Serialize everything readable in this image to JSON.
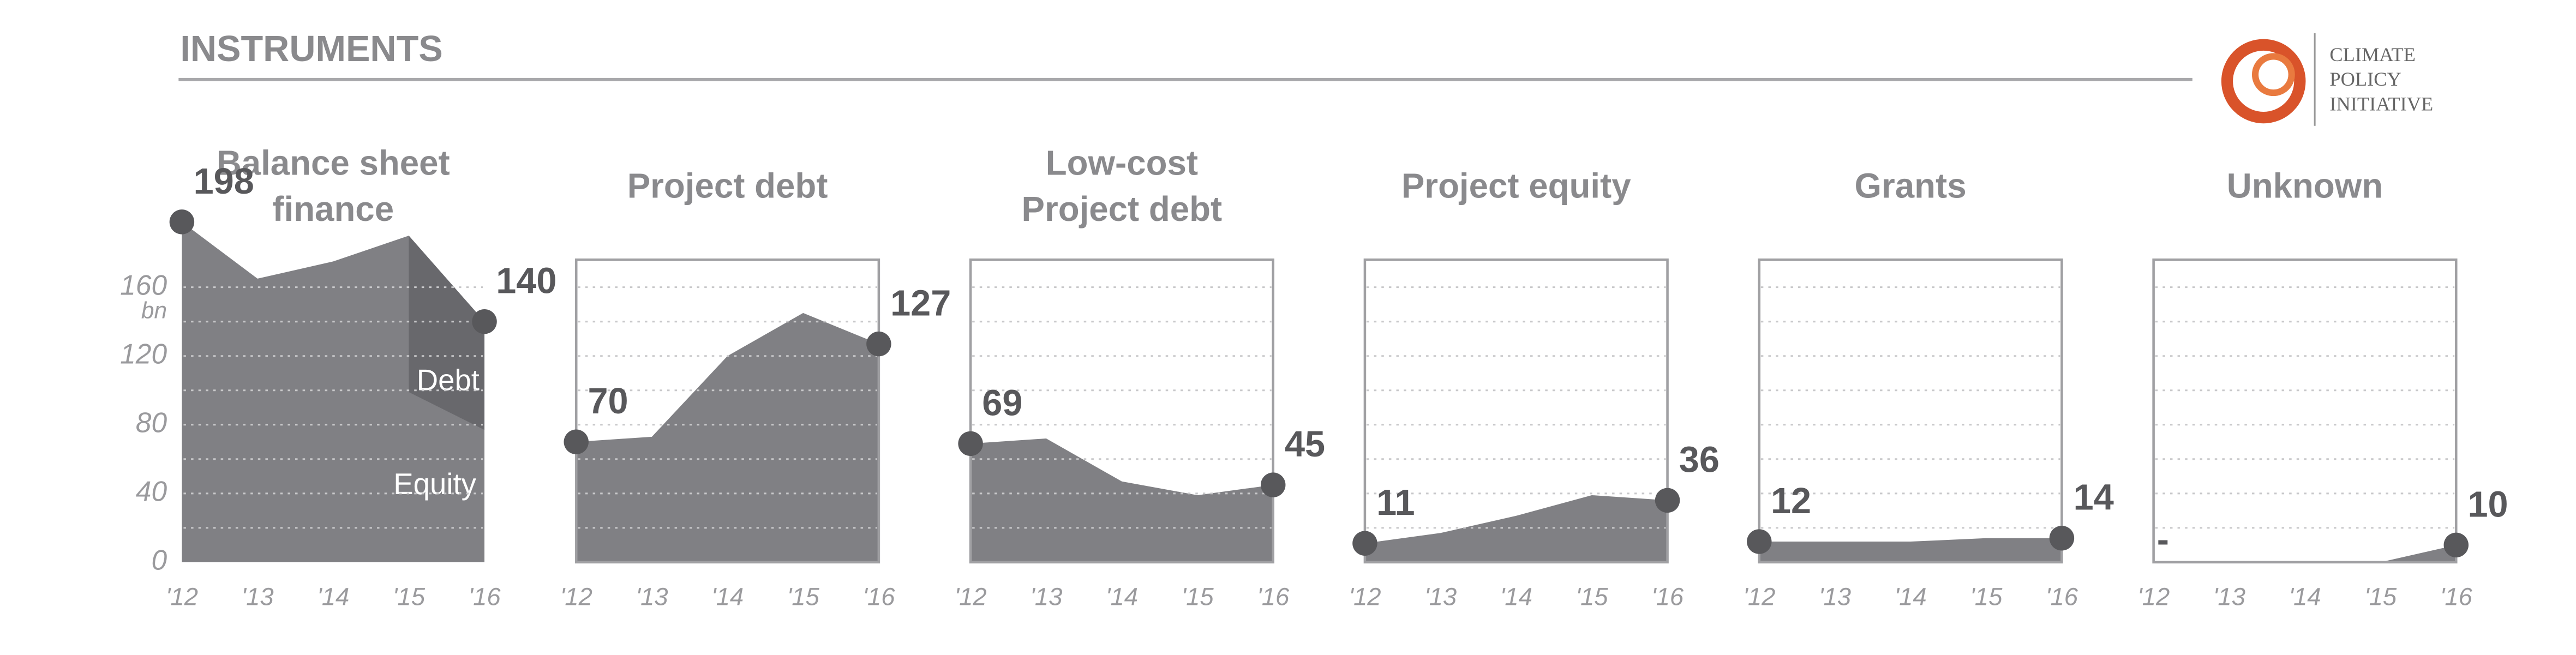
{
  "header": {
    "title": "INSTRUMENTS"
  },
  "logo": {
    "lines": [
      "CLIMATE",
      "POLICY",
      "INITIATIVE"
    ]
  },
  "chart_data": [
    {
      "type": "area",
      "title": [
        "Balance sheet",
        "finance"
      ],
      "categories": [
        "'12",
        "'13",
        "'14",
        "'15",
        "'16"
      ],
      "values": [
        198,
        165,
        175,
        190,
        140
      ],
      "color": "#808084",
      "frame": false,
      "segments": [
        {
          "name": "Debt",
          "color": "#68686c",
          "values": [
            null,
            null,
            null,
            91,
            63
          ]
        },
        {
          "name": "Equity"
        }
      ],
      "ylim": [
        0,
        176
      ],
      "yticks": [
        0,
        40,
        80,
        120,
        160
      ],
      "y_unit": "bn",
      "grid_lines": [
        20,
        40,
        60,
        80,
        100,
        120,
        140,
        160
      ]
    },
    {
      "type": "area",
      "title": [
        "Project debt"
      ],
      "categories": [
        "'12",
        "'13",
        "'14",
        "'15",
        "'16"
      ],
      "values": [
        70,
        73,
        120,
        145,
        127
      ],
      "color": "#808084",
      "frame": true,
      "ylim": [
        0,
        176
      ],
      "grid_lines": [
        20,
        40,
        60,
        80,
        100,
        120,
        140,
        160
      ]
    },
    {
      "type": "area",
      "title": [
        "Low-cost",
        "Project debt"
      ],
      "categories": [
        "'12",
        "'13",
        "'14",
        "'15",
        "'16"
      ],
      "values": [
        69,
        72,
        47,
        39,
        45
      ],
      "color": "#808084",
      "frame": true,
      "ylim": [
        0,
        176
      ],
      "grid_lines": [
        20,
        40,
        60,
        80,
        100,
        120,
        140,
        160
      ]
    },
    {
      "type": "area",
      "title": [
        "Project equity"
      ],
      "categories": [
        "'12",
        "'13",
        "'14",
        "'15",
        "'16"
      ],
      "values": [
        11,
        17,
        27,
        39,
        36
      ],
      "color": "#808084",
      "frame": true,
      "ylim": [
        0,
        176
      ],
      "grid_lines": [
        20,
        40,
        60,
        80,
        100,
        120,
        140,
        160
      ]
    },
    {
      "type": "area",
      "title": [
        "Grants"
      ],
      "categories": [
        "'12",
        "'13",
        "'14",
        "'15",
        "'16"
      ],
      "values": [
        12,
        12,
        12,
        14,
        14
      ],
      "color": "#808084",
      "frame": true,
      "ylim": [
        0,
        176
      ],
      "grid_lines": [
        20,
        40,
        60,
        80,
        100,
        120,
        140,
        160
      ]
    },
    {
      "type": "area",
      "title": [
        "Unknown"
      ],
      "categories": [
        "'12",
        "'13",
        "'14",
        "'15",
        "'16"
      ],
      "values": [
        0,
        0,
        0,
        0,
        10
      ],
      "value_labels": [
        "-",
        null,
        null,
        null,
        null
      ],
      "color": "#808084",
      "frame": true,
      "ylim": [
        0,
        176
      ],
      "grid_lines": [
        20,
        40,
        60,
        80,
        100,
        120,
        140,
        160
      ]
    }
  ]
}
